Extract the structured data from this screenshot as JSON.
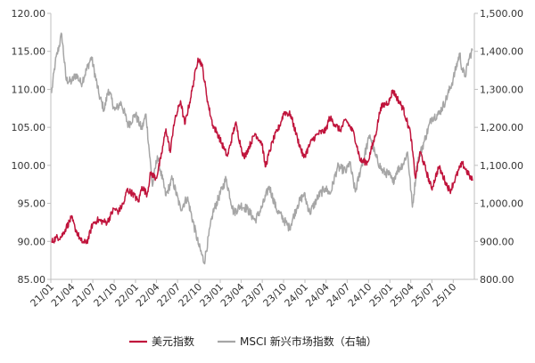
{
  "chart_data": {
    "type": "line",
    "title": "",
    "xlabel": "",
    "ylabel": "",
    "y_left": {
      "range": [
        85,
        120
      ],
      "ticks": [
        85,
        90,
        95,
        100,
        105,
        110,
        115,
        120
      ],
      "tick_labels": [
        "85.00",
        "90.00",
        "95.00",
        "100.00",
        "105.00",
        "110.00",
        "115.00",
        "120.00"
      ]
    },
    "y_right": {
      "range": [
        800,
        1500
      ],
      "ticks": [
        800,
        900,
        1000,
        1100,
        1200,
        1300,
        1400,
        1500
      ],
      "tick_labels": [
        "800.00",
        "900.00",
        "1,000.00",
        "1,100.00",
        "1,200.00",
        "1,300.00",
        "1,400.00",
        "1,500.00"
      ]
    },
    "x": {
      "start": "2021-01",
      "end": "2025-12",
      "tick_labels": [
        "21/01",
        "21/04",
        "21/07",
        "21/10",
        "22/01",
        "22/04",
        "22/07",
        "22/10",
        "23/01",
        "23/04",
        "23/07",
        "23/10",
        "24/01",
        "24/04",
        "24/07",
        "24/10",
        "25/01",
        "25/04",
        "25/07",
        "25/10"
      ]
    },
    "grid": false,
    "legend_position": "bottom",
    "series": [
      {
        "name": "美元指数",
        "axis": "left",
        "color": "#c0143c",
        "points": [
          [
            "2021-01-04",
            89.9
          ],
          [
            "2021-01-25",
            90.5
          ],
          [
            "2021-02-15",
            90.6
          ],
          [
            "2021-03-08",
            91.8
          ],
          [
            "2021-03-31",
            93.1
          ],
          [
            "2021-04-15",
            91.8
          ],
          [
            "2021-05-10",
            90.1
          ],
          [
            "2021-05-25",
            89.8
          ],
          [
            "2021-06-10",
            90.2
          ],
          [
            "2021-06-30",
            92.3
          ],
          [
            "2021-07-20",
            92.8
          ],
          [
            "2021-08-15",
            92.6
          ],
          [
            "2021-09-01",
            92.5
          ],
          [
            "2021-09-30",
            94.3
          ],
          [
            "2021-10-20",
            93.9
          ],
          [
            "2021-11-15",
            95.3
          ],
          [
            "2021-11-24",
            96.8
          ],
          [
            "2021-12-20",
            96.3
          ],
          [
            "2022-01-14",
            95.2
          ],
          [
            "2022-01-28",
            97.2
          ],
          [
            "2022-02-20",
            96.2
          ],
          [
            "2022-03-07",
            99.0
          ],
          [
            "2022-03-31",
            98.3
          ],
          [
            "2022-04-20",
            100.9
          ],
          [
            "2022-05-12",
            104.8
          ],
          [
            "2022-05-31",
            101.7
          ],
          [
            "2022-06-14",
            105.3
          ],
          [
            "2022-07-14",
            108.5
          ],
          [
            "2022-08-01",
            105.4
          ],
          [
            "2022-08-26",
            108.8
          ],
          [
            "2022-09-27",
            114.1
          ],
          [
            "2022-10-14",
            113.3
          ],
          [
            "2022-11-10",
            108.0
          ],
          [
            "2022-11-30",
            105.3
          ],
          [
            "2022-12-20",
            104.2
          ],
          [
            "2023-01-20",
            102.0
          ],
          [
            "2023-02-01",
            101.2
          ],
          [
            "2023-03-08",
            105.6
          ],
          [
            "2023-03-31",
            102.5
          ],
          [
            "2023-04-14",
            101.0
          ],
          [
            "2023-05-31",
            104.2
          ],
          [
            "2023-06-30",
            102.9
          ],
          [
            "2023-07-14",
            99.8
          ],
          [
            "2023-08-15",
            103.2
          ],
          [
            "2023-09-15",
            105.3
          ],
          [
            "2023-10-03",
            107.0
          ],
          [
            "2023-10-31",
            106.7
          ],
          [
            "2023-11-30",
            103.5
          ],
          [
            "2023-12-27",
            101.0
          ],
          [
            "2024-01-31",
            103.3
          ],
          [
            "2024-02-28",
            104.2
          ],
          [
            "2024-03-31",
            104.6
          ],
          [
            "2024-04-16",
            106.3
          ],
          [
            "2024-05-31",
            104.6
          ],
          [
            "2024-06-26",
            106.0
          ],
          [
            "2024-07-31",
            104.1
          ],
          [
            "2024-08-27",
            100.6
          ],
          [
            "2024-09-27",
            100.4
          ],
          [
            "2024-10-31",
            104.0
          ],
          [
            "2024-11-22",
            107.6
          ],
          [
            "2024-12-31",
            108.5
          ],
          [
            "2025-01-13",
            109.9
          ],
          [
            "2025-02-28",
            107.4
          ],
          [
            "2025-03-31",
            104.2
          ],
          [
            "2025-04-21",
            98.3
          ],
          [
            "2025-05-12",
            101.8
          ],
          [
            "2025-06-30",
            96.9
          ],
          [
            "2025-07-31",
            99.8
          ],
          [
            "2025-08-29",
            97.8
          ],
          [
            "2025-09-17",
            96.6
          ],
          [
            "2025-10-31",
            99.8
          ],
          [
            "2025-11-10",
            100.2
          ],
          [
            "2025-12-10",
            98.6
          ],
          [
            "2025-12-24",
            98.0
          ]
        ]
      },
      {
        "name": "MSCI 新兴市场指数（右轴）",
        "axis": "right",
        "color": "#a6a6a6",
        "points": [
          [
            "2021-01-04",
            1290
          ],
          [
            "2021-01-20",
            1370
          ],
          [
            "2021-02-17",
            1445
          ],
          [
            "2021-03-08",
            1325
          ],
          [
            "2021-03-31",
            1320
          ],
          [
            "2021-04-20",
            1340
          ],
          [
            "2021-05-12",
            1315
          ],
          [
            "2021-06-25",
            1385
          ],
          [
            "2021-07-28",
            1285
          ],
          [
            "2021-08-19",
            1245
          ],
          [
            "2021-09-06",
            1300
          ],
          [
            "2021-10-04",
            1245
          ],
          [
            "2021-10-31",
            1265
          ],
          [
            "2021-12-01",
            1205
          ],
          [
            "2021-12-31",
            1235
          ],
          [
            "2022-01-28",
            1195
          ],
          [
            "2022-02-15",
            1235
          ],
          [
            "2022-03-15",
            1045
          ],
          [
            "2022-04-05",
            1125
          ],
          [
            "2022-05-12",
            1020
          ],
          [
            "2022-06-08",
            1065
          ],
          [
            "2022-07-14",
            985
          ],
          [
            "2022-08-12",
            1015
          ],
          [
            "2022-09-30",
            890
          ],
          [
            "2022-10-24",
            845
          ],
          [
            "2022-11-30",
            975
          ],
          [
            "2023-01-26",
            1065
          ],
          [
            "2023-02-28",
            975
          ],
          [
            "2023-03-31",
            995
          ],
          [
            "2023-04-28",
            985
          ],
          [
            "2023-05-31",
            955
          ],
          [
            "2023-06-30",
            990
          ],
          [
            "2023-07-31",
            1045
          ],
          [
            "2023-08-31",
            985
          ],
          [
            "2023-10-26",
            935
          ],
          [
            "2023-11-30",
            995
          ],
          [
            "2023-12-28",
            1025
          ],
          [
            "2024-01-22",
            975
          ],
          [
            "2024-02-29",
            1020
          ],
          [
            "2024-03-28",
            1040
          ],
          [
            "2024-04-19",
            1025
          ],
          [
            "2024-05-20",
            1095
          ],
          [
            "2024-06-28",
            1085
          ],
          [
            "2024-07-11",
            1110
          ],
          [
            "2024-08-05",
            1030
          ],
          [
            "2024-08-30",
            1095
          ],
          [
            "2024-10-07",
            1180
          ],
          [
            "2024-10-31",
            1125
          ],
          [
            "2024-11-29",
            1085
          ],
          [
            "2024-12-31",
            1075
          ],
          [
            "2025-01-13",
            1055
          ],
          [
            "2025-01-31",
            1085
          ],
          [
            "2025-02-28",
            1105
          ],
          [
            "2025-03-18",
            1135
          ],
          [
            "2025-04-08",
            990
          ],
          [
            "2025-04-30",
            1110
          ],
          [
            "2025-05-30",
            1165
          ],
          [
            "2025-06-30",
            1225
          ],
          [
            "2025-07-31",
            1235
          ],
          [
            "2025-08-29",
            1270
          ],
          [
            "2025-09-30",
            1325
          ],
          [
            "2025-10-29",
            1395
          ],
          [
            "2025-11-07",
            1355
          ],
          [
            "2025-11-21",
            1335
          ],
          [
            "2025-12-10",
            1385
          ],
          [
            "2025-12-24",
            1405
          ]
        ]
      }
    ]
  }
}
